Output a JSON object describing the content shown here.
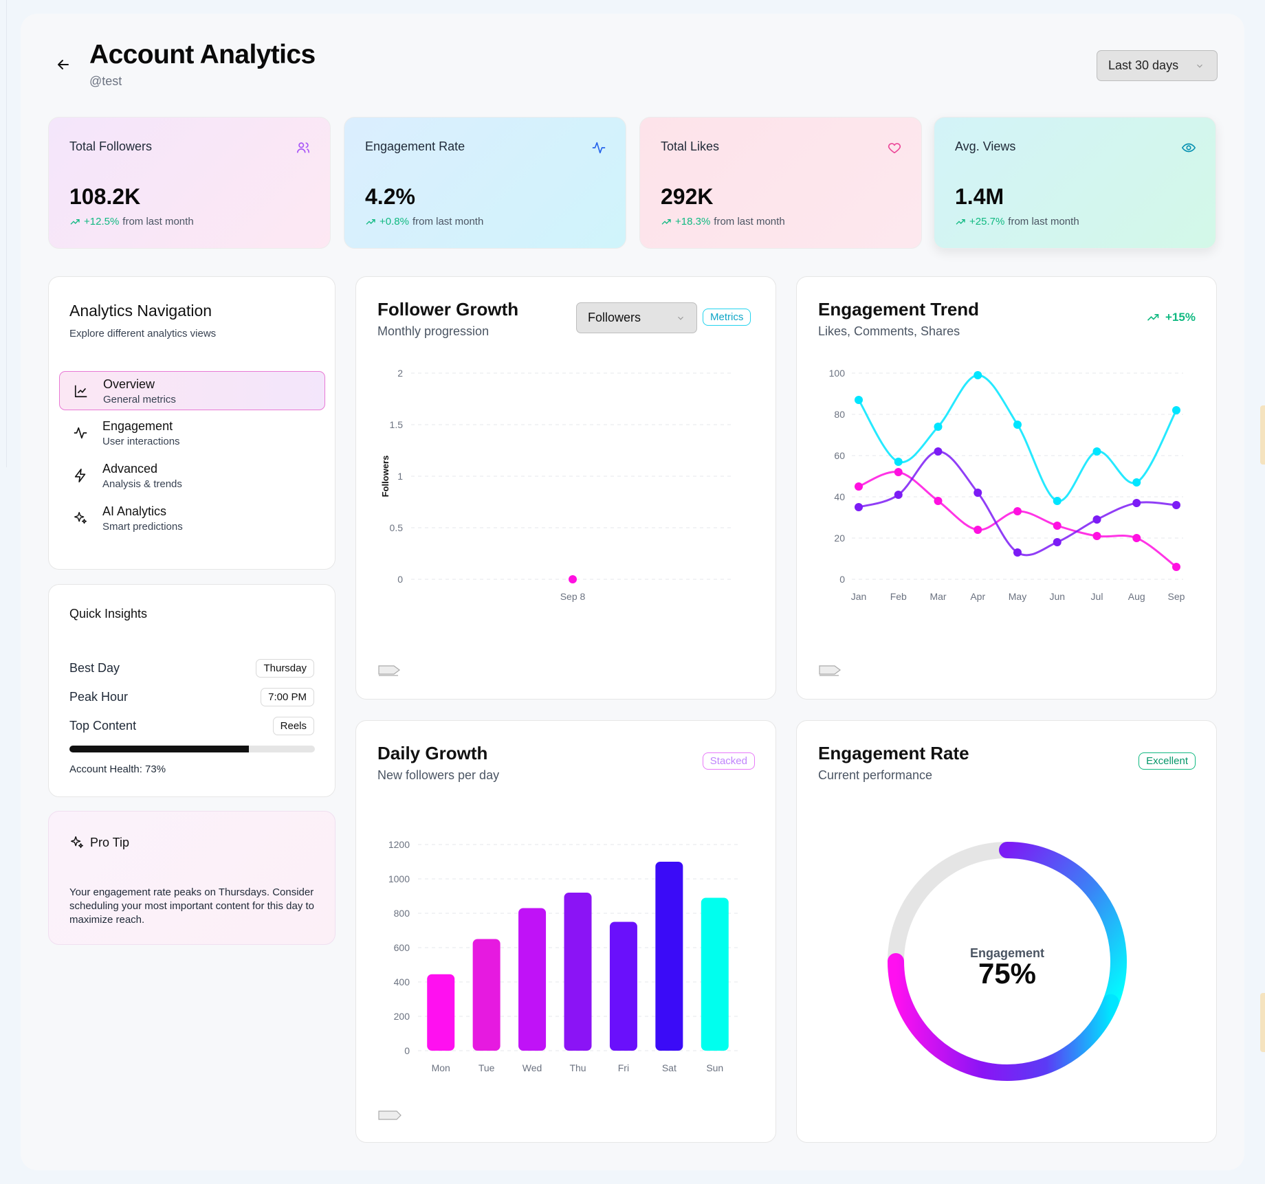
{
  "header": {
    "title": "Account Analytics",
    "handle": "@test",
    "range": "Last 30 days"
  },
  "stats": [
    {
      "label": "Total Followers",
      "value": "108.2K",
      "change": "+12.5%",
      "suffix": "from last month",
      "icon": "users-icon",
      "color": "#a855f7"
    },
    {
      "label": "Engagement Rate",
      "value": "4.2%",
      "change": "+0.8%",
      "suffix": "from last month",
      "icon": "activity-icon",
      "color": "#2563eb"
    },
    {
      "label": "Total Likes",
      "value": "292K",
      "change": "+18.3%",
      "suffix": "from last month",
      "icon": "heart-icon",
      "color": "#ec4899"
    },
    {
      "label": "Avg. Views",
      "value": "1.4M",
      "change": "+25.7%",
      "suffix": "from last month",
      "icon": "eye-icon",
      "color": "#0891b2"
    }
  ],
  "nav": {
    "title": "Analytics Navigation",
    "subtitle": "Explore different analytics views",
    "items": [
      {
        "title": "Overview",
        "sub": "General metrics",
        "icon": "line-chart-icon"
      },
      {
        "title": "Engagement",
        "sub": "User interactions",
        "icon": "activity-icon"
      },
      {
        "title": "Advanced",
        "sub": "Analysis & trends",
        "icon": "zap-icon"
      },
      {
        "title": "AI Analytics",
        "sub": "Smart predictions",
        "icon": "sparkles-icon"
      }
    ]
  },
  "insights": {
    "title": "Quick Insights",
    "rows": [
      {
        "label": "Best Day",
        "value": "Thursday"
      },
      {
        "label": "Peak Hour",
        "value": "7:00 PM"
      },
      {
        "label": "Top Content",
        "value": "Reels"
      }
    ],
    "health_label": "Account Health: 73%",
    "health_value": 73
  },
  "tip": {
    "title": "Pro Tip",
    "text": "Your engagement rate peaks on Thursdays. Consider scheduling your most important content for this day to maximize reach."
  },
  "follower_growth": {
    "title": "Follower Growth",
    "subtitle": "Monthly progression",
    "select": "Followers",
    "badge": "Metrics"
  },
  "engagement_trend": {
    "title": "Engagement Trend",
    "subtitle": "Likes, Comments, Shares",
    "badge": "+15%"
  },
  "daily_growth": {
    "title": "Daily Growth",
    "subtitle": "New followers per day",
    "badge": "Stacked"
  },
  "engagement_rate": {
    "title": "Engagement Rate",
    "subtitle": "Current performance",
    "badge": "Excellent",
    "center_label": "Engagement",
    "center_value": "75%",
    "value": 75
  },
  "chart_data": [
    {
      "id": "follower_growth",
      "type": "scatter",
      "ylabel": "Followers",
      "ylim": [
        0,
        2
      ],
      "yticks": [
        "0",
        "0.5",
        "1",
        "1.5",
        "2"
      ],
      "x": [
        "Sep 8"
      ],
      "values": [
        0
      ],
      "color": "#ff10e0"
    },
    {
      "id": "engagement_trend",
      "type": "line",
      "categories": [
        "Jan",
        "Feb",
        "Mar",
        "Apr",
        "May",
        "Jun",
        "Jul",
        "Aug",
        "Sep"
      ],
      "ylim": [
        0,
        100
      ],
      "yticks": [
        "0",
        "20",
        "40",
        "60",
        "80",
        "100"
      ],
      "series": [
        {
          "name": "Likes",
          "values": [
            87,
            57,
            74,
            99,
            75,
            38,
            62,
            47,
            82
          ],
          "color": "#00e5ff"
        },
        {
          "name": "Comments",
          "values": [
            45,
            52,
            38,
            24,
            33,
            26,
            21,
            20,
            6
          ],
          "color": "#ff10e0"
        },
        {
          "name": "Shares",
          "values": [
            35,
            41,
            62,
            42,
            13,
            18,
            29,
            37,
            36
          ],
          "color": "#7c1cf5"
        }
      ]
    },
    {
      "id": "daily_growth",
      "type": "bar",
      "categories": [
        "Mon",
        "Tue",
        "Wed",
        "Thu",
        "Fri",
        "Sat",
        "Sun"
      ],
      "values": [
        445,
        650,
        830,
        920,
        750,
        1100,
        890
      ],
      "colors": [
        "#ff10f0",
        "#e61ae0",
        "#c012f7",
        "#8b14f5",
        "#6a10fb",
        "#3b0bf7",
        "#00ffee"
      ],
      "ylim": [
        0,
        1200
      ],
      "yticks": [
        "0",
        "200",
        "400",
        "600",
        "800",
        "1000",
        "1200"
      ]
    }
  ]
}
